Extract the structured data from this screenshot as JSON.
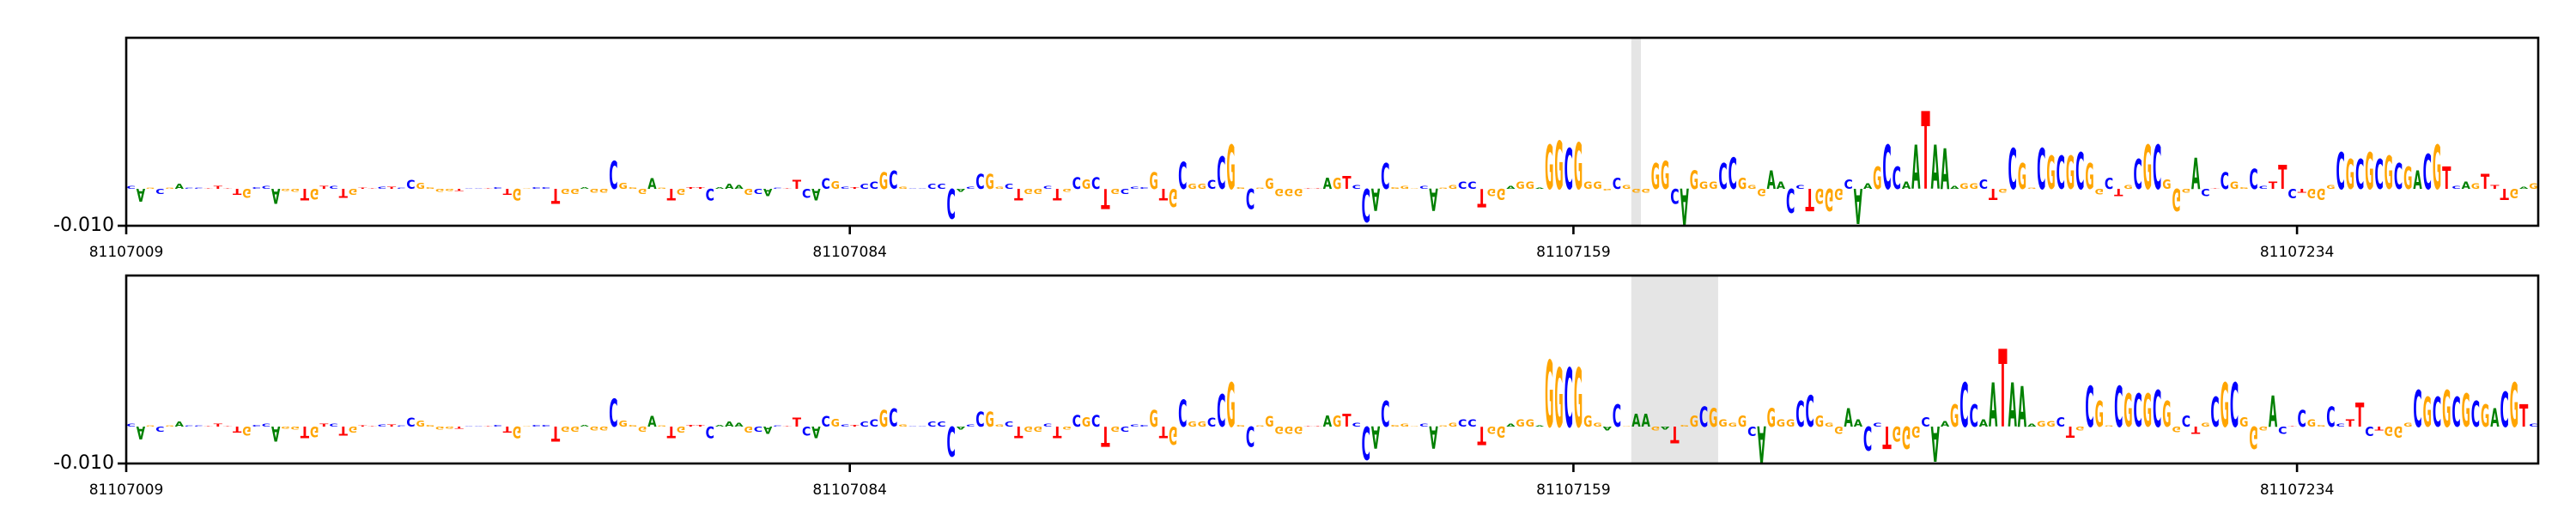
{
  "colors": {
    "A": "#008000",
    "C": "#0000ff",
    "G": "#ffa500",
    "T": "#ff0000",
    "highlight": "#e5e5e5"
  },
  "chart_data": [
    {
      "type": "sequence-logo",
      "x_start": 81107009,
      "x_tick_labels": [
        "81107009",
        "81107084",
        "81107159",
        "81107234"
      ],
      "y_tick_labels": [
        "-0.010"
      ],
      "ylim": [
        -0.01,
        0.041
      ],
      "highlight_range": [
        81107165,
        81107165
      ],
      "sequence": "CAGCGACCTTTTGCCAGGTGTCTGTTCTCCGGGGTCCTCTGGCCTGGAGGCGGGAGTGTTCAAAGCACTTCACGCTCCGCGCCCCCACCGGCTGGCTGCGCTGCCCGTGCGGCCGGCGGGGGTTAGTCCACGGGCAGGCCTGGAGGAGGCGGGGCGGGGGCAGGGCCGGGAACCTGGGCAAGCCAATAAAGGCTGCGGCGCGCGGCTGCGCGGGACTCGGCCTTCTGGGCGCGCGCGACGTCAGTTTGAG",
      "values": [
        0.0008,
        -0.0035,
        0.0003,
        -0.0013,
        0.0003,
        0.0013,
        0.0003,
        0.0003,
        0.0002,
        0.0008,
        0.0002,
        -0.0016,
        -0.0024,
        0.0005,
        0.0008,
        -0.004,
        -0.0006,
        -0.0008,
        -0.0032,
        -0.0029,
        0.0008,
        0.0008,
        -0.0024,
        -0.0016,
        0.0003,
        0.0002,
        0.0006,
        0.0006,
        0.0003,
        0.0024,
        0.0016,
        0.0005,
        -0.0008,
        -0.0006,
        -0.0006,
        0.0002,
        0.0002,
        0.0002,
        0.0005,
        -0.0016,
        -0.0032,
        0.0002,
        0.0005,
        0.0005,
        -0.004,
        -0.0013,
        -0.0013,
        0.0005,
        -0.001,
        -0.001,
        0.0075,
        0.0016,
        0.0005,
        -0.0013,
        0.0029,
        0.0003,
        -0.0032,
        -0.0016,
        0.0005,
        0.0005,
        -0.0032,
        0.0005,
        0.0013,
        0.001,
        -0.0016,
        -0.0013,
        -0.002,
        0.0003,
        0.0002,
        0.0024,
        -0.0024,
        -0.0032,
        0.0029,
        0.0021,
        0.0006,
        0.0005,
        0.0013,
        0.0019,
        0.0045,
        0.0048,
        0.0006,
        0.0002,
        0.0002,
        0.0013,
        0.0013,
        -0.008,
        -0.0008,
        0.0006,
        0.004,
        0.004,
        0.0006,
        0.0013,
        -0.0032,
        -0.0013,
        -0.0013,
        0.0008,
        -0.0032,
        -0.0008,
        0.0032,
        0.0026,
        0.0032,
        -0.0055,
        -0.0014,
        -0.0014,
        0.0006,
        0.0005,
        0.0045,
        -0.0032,
        -0.0048,
        0.0072,
        0.0013,
        0.0013,
        0.0024,
        0.0088,
        0.012,
        0.0005,
        -0.0055,
        0.0003,
        0.0029,
        -0.0019,
        -0.0019,
        -0.0019,
        0.0002,
        0.0002,
        0.003,
        0.003,
        0.0035,
        0.001,
        -0.009,
        -0.006,
        0.007,
        0.0005,
        0.0008,
        0.0001,
        0.0008,
        -0.006,
        0.0003,
        0.001,
        0.002,
        0.002,
        -0.005,
        -0.002,
        -0.003,
        0.0008,
        0.002,
        0.002,
        0.0003,
        0.012,
        0.013,
        0.011,
        0.0125,
        0.002,
        0.002,
        -0.0005,
        0.003,
        0.001,
        -0.001,
        -0.001,
        0.007,
        0.0075,
        -0.004,
        -0.0098,
        0.005,
        0.002,
        0.002,
        0.007,
        0.0085,
        0.003,
        0.001,
        -0.002,
        0.005,
        0.002,
        -0.0065,
        0.001,
        -0.006,
        -0.004,
        -0.006,
        -0.003,
        0.0025,
        -0.0095,
        0.0015,
        0.006,
        0.012,
        0.006,
        0.002,
        0.012,
        0.021,
        0.012,
        0.011,
        0.0008,
        0.0015,
        0.0015,
        0.0025,
        -0.003,
        -0.001,
        0.011,
        0.007,
        0.0003,
        0.011,
        0.009,
        0.009,
        0.009,
        0.01,
        0.007,
        -0.0015,
        0.003,
        -0.002,
        0.001,
        0.008,
        0.012,
        0.012,
        0.0025,
        -0.006,
        -0.001,
        0.0085,
        -0.002,
        0.0001,
        0.0045,
        0.002,
        0.0005,
        0.0055,
        0.0008,
        0.002,
        0.0065,
        -0.0025,
        -0.001,
        -0.0025,
        -0.003,
        0.001,
        0.01,
        0.008,
        0.008,
        0.01,
        0.008,
        0.009,
        0.007,
        0.006,
        0.005,
        0.0095,
        0.012,
        0.006,
        0.0008,
        0.002,
        0.0015,
        0.004,
        0.001,
        -0.003,
        -0.0025,
        0.0006,
        0.0015
      ]
    },
    {
      "type": "sequence-logo",
      "x_start": 81107009,
      "x_tick_labels": [
        "81107009",
        "81107084",
        "81107159",
        "81107234"
      ],
      "y_tick_labels": [
        "-0.010"
      ],
      "ylim": [
        -0.01,
        0.041
      ],
      "highlight_range": [
        81107165,
        81107173
      ],
      "sequence": "CAGCGACCTTTTGCCAGGTGTCTGTTCTCCGGGGTCCTCTGGCCTGGAGGCGGGAGTGTTCAAAGCACTTCACGCTCCGCGCCCCCACCGGCTGGCTGCGCTGCCCGTGCGGCCGGCGGGGGTTAGTCCACGGGCAGGCCTGGAGGAGGCGGGACGAAGATGGCGGGGCAGGGCCGGGAACCTGGGCAAGCCAATAAAGGCTGCGGCGCGCGGCTGCGCGGGACTCGGCCTTCTGGGCGCGCGCGACGTC",
      "values": [
        0.0008,
        -0.0035,
        0.0003,
        -0.0013,
        0.0003,
        0.0013,
        0.0003,
        0.0003,
        0.0002,
        0.0008,
        0.0002,
        -0.0016,
        -0.0024,
        0.0005,
        0.0008,
        -0.004,
        -0.0006,
        -0.0008,
        -0.0032,
        -0.0029,
        0.0008,
        0.0008,
        -0.0024,
        -0.0016,
        0.0003,
        0.0002,
        0.0006,
        0.0006,
        0.0003,
        0.0024,
        0.0016,
        0.0005,
        -0.0008,
        -0.0006,
        -0.0006,
        0.0002,
        0.0002,
        0.0002,
        0.0005,
        -0.0016,
        -0.0032,
        0.0002,
        0.0005,
        0.0005,
        -0.004,
        -0.0013,
        -0.0013,
        0.0005,
        -0.001,
        -0.001,
        0.0075,
        0.0016,
        0.0005,
        -0.0013,
        0.0029,
        0.0003,
        -0.0032,
        -0.0016,
        0.0005,
        0.0005,
        -0.0032,
        0.0005,
        0.0013,
        0.001,
        -0.0016,
        -0.0013,
        -0.002,
        0.0003,
        0.0002,
        0.0024,
        -0.0024,
        -0.0032,
        0.0029,
        0.0021,
        0.0006,
        0.0005,
        0.0013,
        0.0019,
        0.0045,
        0.0048,
        0.0006,
        0.0002,
        0.0002,
        0.0013,
        0.0013,
        -0.008,
        -0.0008,
        0.0006,
        0.004,
        0.004,
        0.0006,
        0.0013,
        -0.0032,
        -0.0013,
        -0.0013,
        0.0008,
        -0.0032,
        -0.0008,
        0.0032,
        0.0026,
        0.0032,
        -0.0055,
        -0.0014,
        -0.0014,
        0.0006,
        0.0005,
        0.0045,
        -0.0032,
        -0.0048,
        0.0072,
        0.0013,
        0.0013,
        0.0024,
        0.0088,
        0.012,
        0.0005,
        -0.0055,
        0.0003,
        0.0029,
        -0.0019,
        -0.0019,
        -0.0019,
        0.0002,
        0.0002,
        0.003,
        0.003,
        0.0035,
        0.001,
        -0.009,
        -0.006,
        0.007,
        0.0005,
        0.0008,
        0.0001,
        0.0008,
        -0.006,
        0.0003,
        0.001,
        0.002,
        0.002,
        -0.005,
        -0.002,
        -0.003,
        0.0008,
        0.002,
        0.002,
        0.0003,
        0.018,
        0.016,
        0.016,
        0.016,
        0.003,
        0.001,
        -0.001,
        0.006,
        0.0002,
        0.0035,
        0.0035,
        -0.001,
        -0.0008,
        -0.0045,
        0.0005,
        0.003,
        0.0055,
        0.005,
        0.002,
        0.001,
        0.003,
        -0.0025,
        -0.0098,
        0.005,
        0.002,
        0.002,
        0.007,
        0.0085,
        0.003,
        0.001,
        -0.002,
        0.005,
        0.002,
        -0.0065,
        0.001,
        -0.006,
        -0.004,
        -0.006,
        -0.003,
        0.0025,
        -0.0095,
        0.0015,
        0.006,
        0.012,
        0.006,
        0.002,
        0.012,
        0.021,
        0.012,
        0.011,
        0.0008,
        0.0015,
        0.0015,
        0.0025,
        -0.003,
        -0.001,
        0.011,
        0.007,
        0.0003,
        0.011,
        0.009,
        0.009,
        0.009,
        0.01,
        0.007,
        -0.0015,
        0.003,
        -0.002,
        0.001,
        0.008,
        0.012,
        0.012,
        0.0025,
        -0.006,
        -0.001,
        0.0085,
        -0.002,
        0.0001,
        0.0045,
        0.002,
        0.0005,
        0.0055,
        0.0008,
        0.002,
        0.0065,
        -0.0025,
        -0.001,
        -0.0025,
        -0.003,
        0.001,
        0.01,
        0.008,
        0.008,
        0.01,
        0.008,
        0.009,
        0.007,
        0.006,
        0.005,
        0.0095,
        0.012,
        0.006,
        0.0008
      ]
    }
  ]
}
